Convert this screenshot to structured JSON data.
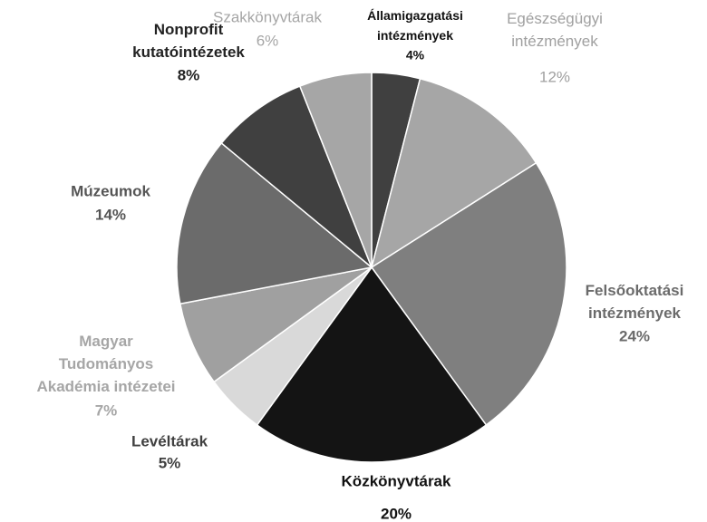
{
  "chart_data": {
    "type": "pie",
    "categories": [
      "Államigazgatási\nintézmények",
      "Egészségügyi\nintézmények",
      "Felsőoktatási\nintézmények",
      "Közkönyvtárak",
      "Levéltárak",
      "Magyar\nTudományos\nAkadémia intézetei",
      "Múzeumok",
      "Nonprofit\nkutatóintézetek",
      "Szakkönyvtárak"
    ],
    "values": [
      4,
      12,
      24,
      20,
      5,
      7,
      14,
      8,
      6
    ],
    "value_labels": [
      "4%",
      "12%",
      "24%",
      "20%",
      "5%",
      "7%",
      "14%",
      "8%",
      "6%"
    ],
    "colors": [
      "#404040",
      "#a6a6a6",
      "#7f7f7f",
      "#141414",
      "#d9d9d9",
      "#a0a0a0",
      "#6b6b6b",
      "#404040",
      "#a6a6a6"
    ]
  }
}
